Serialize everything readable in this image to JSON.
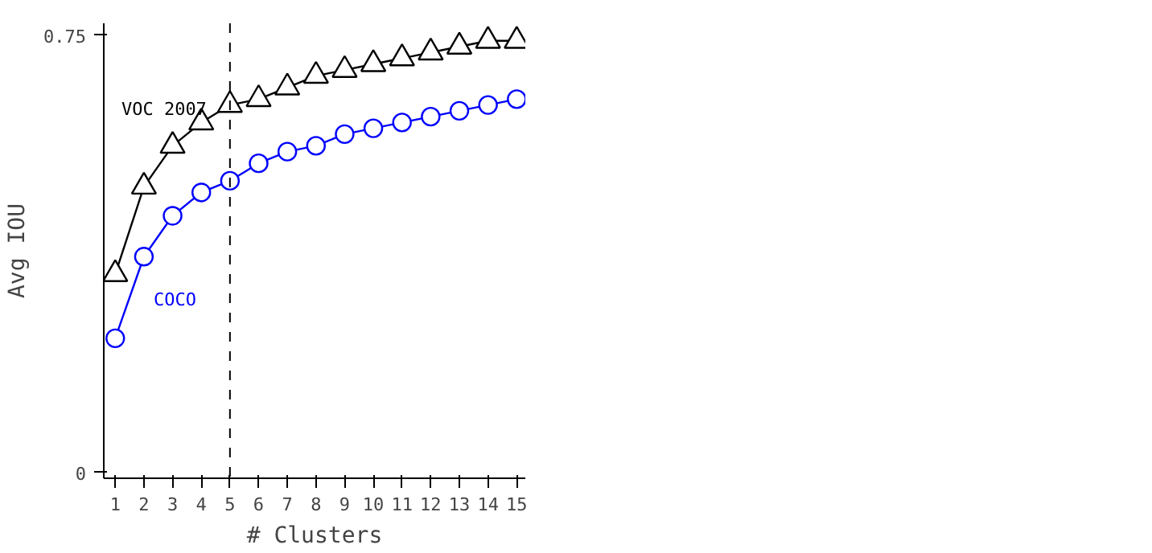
{
  "chart_data": {
    "type": "line",
    "xlabel": "# Clusters",
    "ylabel": "Avg IOU",
    "x": [
      1,
      2,
      3,
      4,
      5,
      6,
      7,
      8,
      9,
      10,
      11,
      12,
      13,
      14,
      15
    ],
    "xlim": [
      0.6,
      15.3
    ],
    "xticks": [
      1,
      2,
      3,
      4,
      5,
      6,
      7,
      8,
      9,
      10,
      11,
      12,
      13,
      14,
      15
    ],
    "ylim": [
      -0.01,
      0.77
    ],
    "yticks": [
      0,
      0.75
    ],
    "grid": false,
    "line_style": "solid",
    "ref_lines": [
      {
        "axis": "x",
        "value": 5,
        "label": null,
        "color": "#000000",
        "line_style": "dashed"
      }
    ],
    "series": [
      {
        "name": "VOC 2007",
        "color": "#000000",
        "marker": "triangle",
        "values": [
          0.34,
          0.49,
          0.56,
          0.6,
          0.63,
          0.64,
          0.66,
          0.68,
          0.69,
          0.7,
          0.71,
          0.72,
          0.73,
          0.74,
          0.74
        ]
      },
      {
        "name": "COCO",
        "color": "#0000ff",
        "marker": "circle",
        "values": [
          0.23,
          0.37,
          0.44,
          0.48,
          0.5,
          0.53,
          0.55,
          0.56,
          0.58,
          0.59,
          0.6,
          0.61,
          0.62,
          0.63,
          0.64
        ]
      }
    ]
  }
}
